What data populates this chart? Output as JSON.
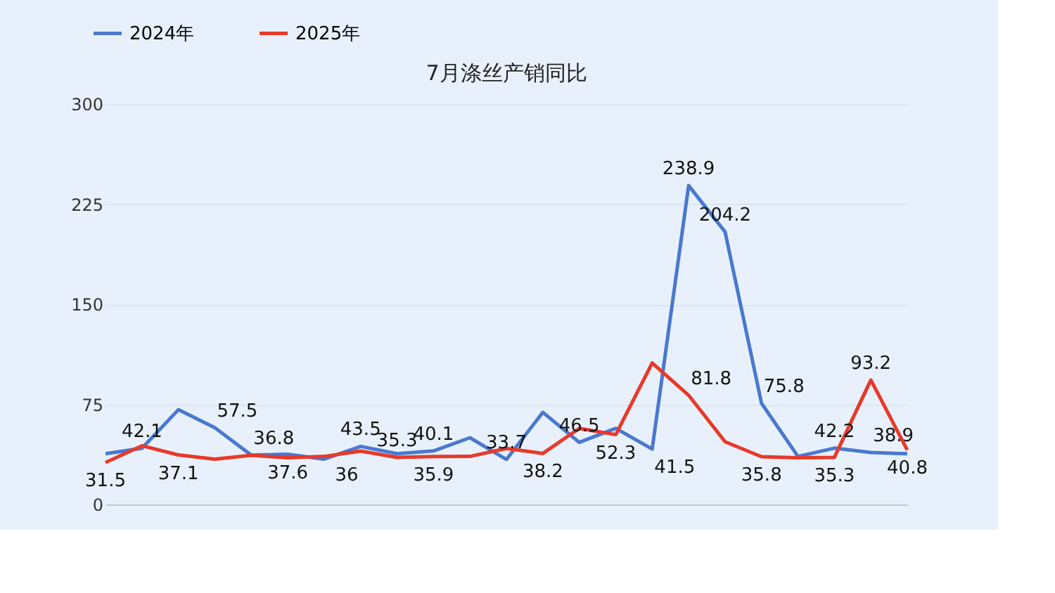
{
  "chart_data": {
    "type": "line",
    "title": "7月涤丝产销同比",
    "categories": [
      null,
      null,
      null,
      null,
      null,
      null,
      null,
      null,
      null,
      null,
      null,
      null,
      null,
      null,
      null,
      null,
      null,
      null,
      null,
      null,
      null,
      null,
      null
    ],
    "series": [
      {
        "name": "2024年",
        "color": "#4a78d0",
        "values": [
          38,
          42.1,
          71,
          57.5,
          37,
          37.6,
          34,
          43.5,
          38,
          40.1,
          50,
          33.7,
          69,
          46.5,
          57,
          41.5,
          238.9,
          204.2,
          75.8,
          36,
          42.2,
          38.9,
          38
        ],
        "value_labels": [
          null,
          "42.1",
          null,
          "57.5",
          null,
          "37.6",
          null,
          "43.5",
          null,
          "40.1",
          null,
          "33.7",
          null,
          "46.5",
          null,
          "41.5",
          "238.9",
          "204.2",
          "75.8",
          null,
          "42.2",
          "38.9",
          null
        ]
      },
      {
        "name": "2025年",
        "color": "#e8392a",
        "values": [
          31.5,
          44,
          37.1,
          34,
          36.8,
          35,
          36,
          40,
          35.3,
          35.9,
          36,
          42,
          38.2,
          57,
          52.3,
          106,
          81.8,
          47,
          35.8,
          35,
          35.3,
          93.2,
          40.8
        ],
        "value_labels": [
          "31.5",
          null,
          "37.1",
          null,
          "36.8",
          null,
          "36",
          null,
          "35.3",
          "35.9",
          null,
          null,
          "38.2",
          null,
          "52.3",
          null,
          "81.8",
          null,
          "35.8",
          null,
          "35.3",
          "93.2",
          "40.8"
        ]
      }
    ],
    "ylim": [
      0,
      300
    ],
    "yticks": [
      0,
      75,
      150,
      225,
      300
    ],
    "grid": "y",
    "legend": "top left",
    "tick_labels": "y",
    "marker": "none",
    "line_style": "solid"
  }
}
